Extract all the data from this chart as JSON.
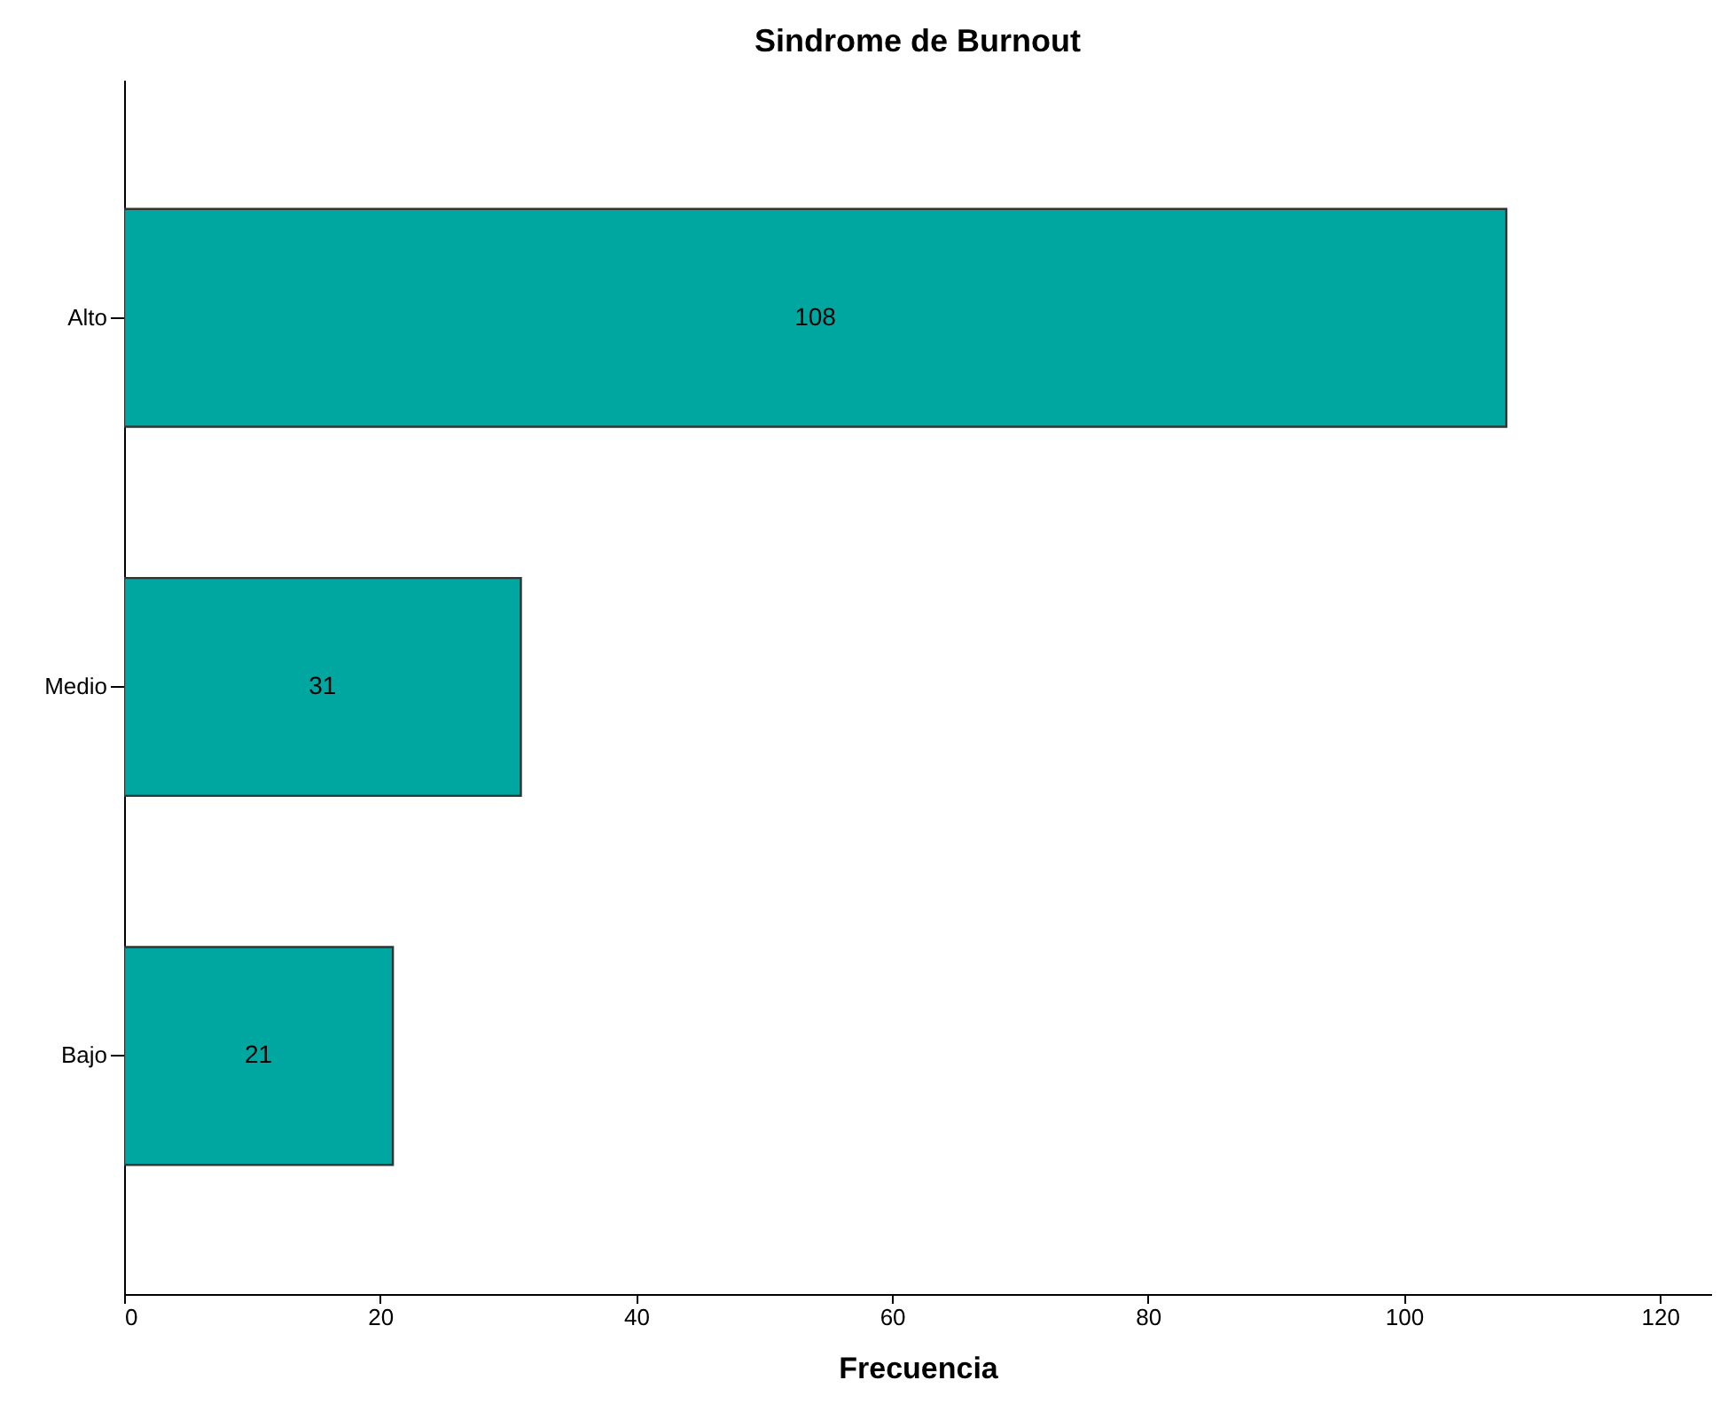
{
  "chart_data": {
    "type": "bar",
    "title": "Sindrome de Burnout",
    "xlabel": "Frecuencia",
    "orientation": "horizontal",
    "categories": [
      "Alto",
      "Medio",
      "Bajo"
    ],
    "values": [
      108,
      31,
      21
    ],
    "color": "#00a6a0",
    "xlim": [
      0,
      124
    ],
    "xticks": [
      0,
      20,
      40,
      60,
      80,
      100,
      120
    ],
    "data_labels": true,
    "grid": false
  }
}
